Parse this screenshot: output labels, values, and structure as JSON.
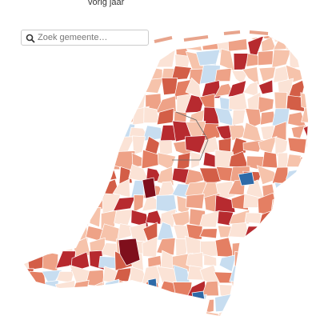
{
  "header": {
    "subtitle": "vorig jaar"
  },
  "search": {
    "placeholder": "Zoek gemeente…"
  }
}
